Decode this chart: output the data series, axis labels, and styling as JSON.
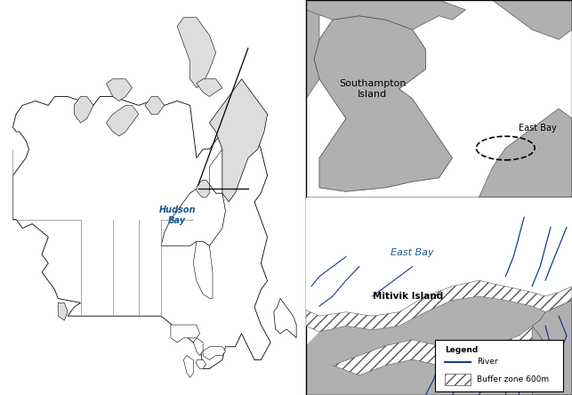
{
  "fig_width": 6.43,
  "fig_height": 4.44,
  "bg_color": "#ffffff",
  "land_color": "#b0b0b0",
  "coastline_color": "#000000",
  "river_color": "#1a3a8c",
  "hudson_bay_text": "Hudson\nBay",
  "hudson_bay_color": "#1a5a8c",
  "east_bay_text_mid": "East Bay",
  "east_bay_color": "#1a5a8c",
  "southampton_text": "Southampton\nIsland",
  "east_bay_label": "East Bay",
  "mitivik_label": "Mitivik Island",
  "legend_title": "Legend",
  "legend_river": "River",
  "legend_buffer": "Buffer zone 600m"
}
